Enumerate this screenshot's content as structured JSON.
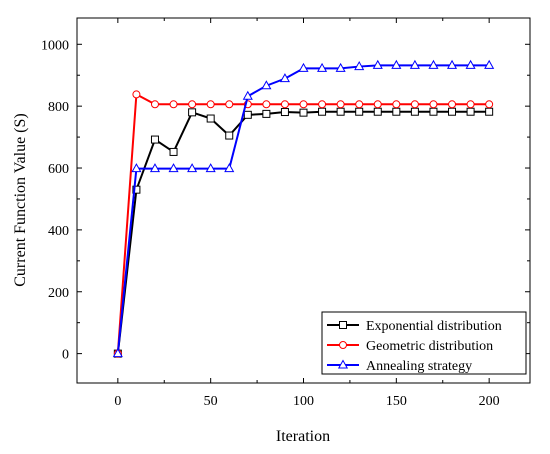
{
  "chart_data": {
    "type": "line",
    "title": "",
    "xlabel": "Iteration",
    "ylabel": "Current Function Value (S)",
    "xlim": [
      -22,
      222
    ],
    "ylim": [
      -95,
      1085
    ],
    "xticks": [
      0,
      50,
      100,
      150,
      200
    ],
    "yticks": [
      0,
      200,
      400,
      600,
      800,
      1000
    ],
    "grid": false,
    "legend_position": "bottom-right",
    "x": [
      0,
      10,
      20,
      30,
      40,
      50,
      60,
      70,
      80,
      90,
      100,
      110,
      120,
      130,
      140,
      150,
      160,
      170,
      180,
      190,
      200
    ],
    "series": [
      {
        "name": "Exponential distribution",
        "color": "#000000",
        "marker": "square",
        "values": [
          0,
          530,
          692,
          652,
          780,
          760,
          705,
          772,
          775,
          781,
          779,
          782,
          782,
          782,
          782,
          782,
          782,
          782,
          782,
          782,
          782
        ]
      },
      {
        "name": "Geometric distribution",
        "color": "#ff0000",
        "marker": "circle",
        "values": [
          0,
          838,
          806,
          806,
          806,
          806,
          806,
          806,
          806,
          806,
          806,
          806,
          806,
          806,
          806,
          806,
          806,
          806,
          806,
          806,
          806
        ]
      },
      {
        "name": "Annealing strategy",
        "color": "#0000ff",
        "marker": "triangle",
        "values": [
          0,
          598,
          598,
          598,
          598,
          598,
          598,
          832,
          866,
          889,
          922,
          922,
          922,
          928,
          932,
          932,
          932,
          932,
          932,
          932,
          932
        ]
      }
    ]
  }
}
